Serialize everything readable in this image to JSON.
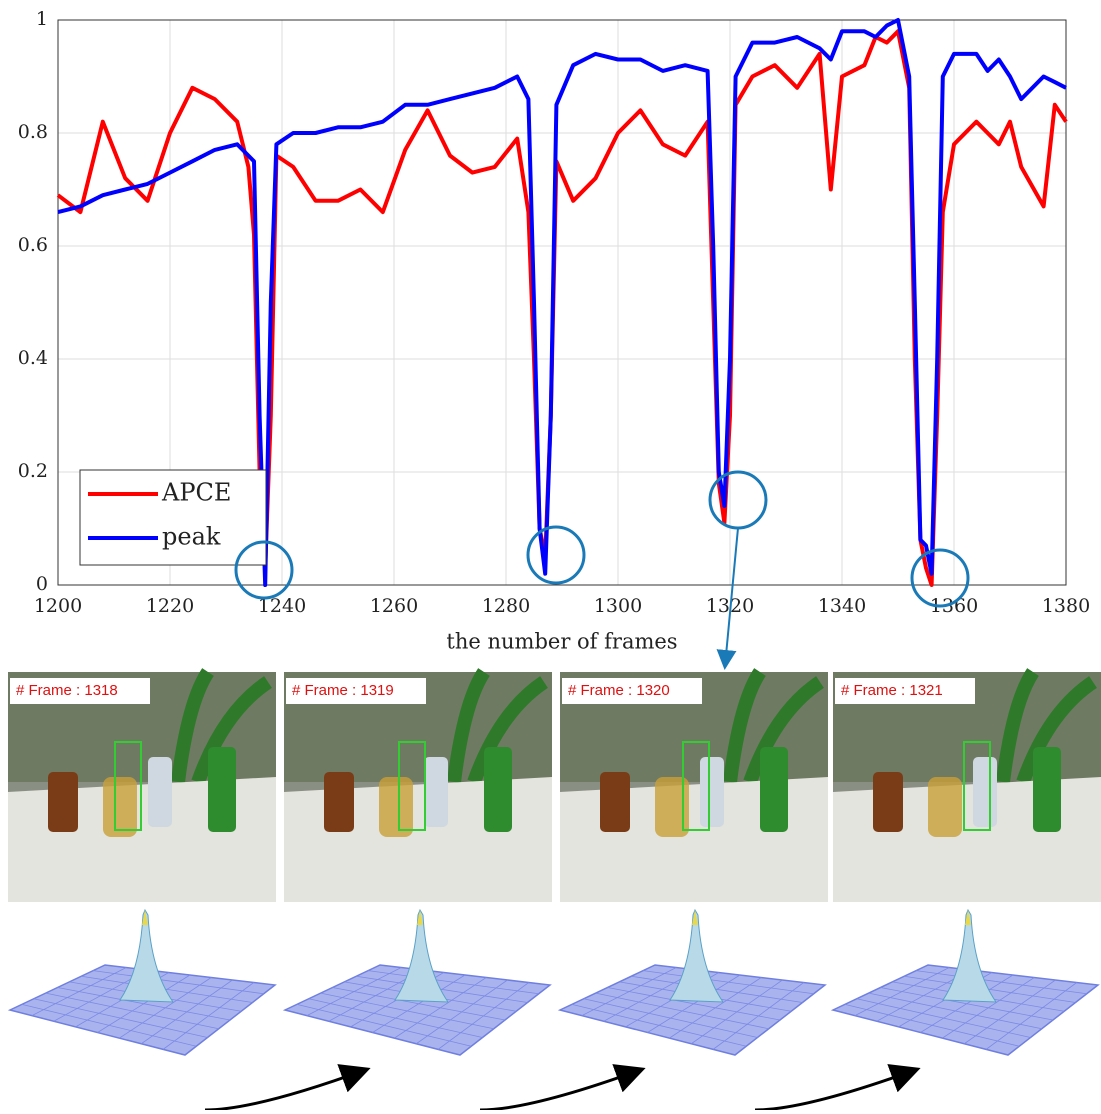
{
  "chart_data": {
    "type": "line",
    "x_label": "the number of frames",
    "x": [
      1200,
      1204,
      1208,
      1212,
      1216,
      1220,
      1224,
      1228,
      1232,
      1234,
      1235,
      1236,
      1237,
      1238,
      1239,
      1242,
      1246,
      1250,
      1254,
      1258,
      1262,
      1266,
      1270,
      1274,
      1278,
      1282,
      1284,
      1285,
      1286,
      1287,
      1288,
      1289,
      1292,
      1296,
      1300,
      1304,
      1308,
      1312,
      1316,
      1317,
      1318,
      1319,
      1320,
      1321,
      1324,
      1328,
      1332,
      1336,
      1338,
      1340,
      1344,
      1346,
      1348,
      1350,
      1352,
      1353,
      1354,
      1355,
      1356,
      1357,
      1358,
      1360,
      1364,
      1366,
      1368,
      1370,
      1372,
      1376,
      1378,
      1380
    ],
    "series": [
      {
        "name": "APCE",
        "color": "#ff0000",
        "values": [
          0.69,
          0.66,
          0.82,
          0.72,
          0.68,
          0.8,
          0.88,
          0.86,
          0.82,
          0.74,
          0.62,
          0.2,
          0.03,
          0.3,
          0.76,
          0.74,
          0.68,
          0.68,
          0.7,
          0.66,
          0.77,
          0.84,
          0.76,
          0.73,
          0.74,
          0.79,
          0.66,
          0.4,
          0.1,
          0.05,
          0.3,
          0.75,
          0.68,
          0.72,
          0.8,
          0.84,
          0.78,
          0.76,
          0.82,
          0.5,
          0.18,
          0.11,
          0.3,
          0.85,
          0.9,
          0.92,
          0.88,
          0.94,
          0.7,
          0.9,
          0.92,
          0.97,
          0.96,
          0.98,
          0.88,
          0.4,
          0.08,
          0.03,
          0.0,
          0.3,
          0.66,
          0.78,
          0.82,
          0.8,
          0.78,
          0.82,
          0.74,
          0.67,
          0.85,
          0.82
        ]
      },
      {
        "name": "peak",
        "color": "#0000ff",
        "values": [
          0.66,
          0.67,
          0.69,
          0.7,
          0.71,
          0.73,
          0.75,
          0.77,
          0.78,
          0.76,
          0.75,
          0.3,
          0.0,
          0.5,
          0.78,
          0.8,
          0.8,
          0.81,
          0.81,
          0.82,
          0.85,
          0.85,
          0.86,
          0.87,
          0.88,
          0.9,
          0.86,
          0.5,
          0.1,
          0.02,
          0.3,
          0.85,
          0.92,
          0.94,
          0.93,
          0.93,
          0.91,
          0.92,
          0.91,
          0.6,
          0.2,
          0.14,
          0.4,
          0.9,
          0.96,
          0.96,
          0.97,
          0.95,
          0.93,
          0.98,
          0.98,
          0.97,
          0.99,
          1.0,
          0.9,
          0.5,
          0.08,
          0.07,
          0.02,
          0.4,
          0.9,
          0.94,
          0.94,
          0.91,
          0.93,
          0.9,
          0.86,
          0.9,
          0.89,
          0.88
        ]
      }
    ],
    "xlim": [
      1200,
      1380
    ],
    "xticks": [
      1200,
      1220,
      1240,
      1260,
      1280,
      1300,
      1320,
      1340,
      1360,
      1380
    ],
    "ylim": [
      0,
      1
    ],
    "yticks": [
      0,
      0.2,
      0.4,
      0.6,
      0.8,
      1
    ],
    "grid": true,
    "legend": "lower-left"
  },
  "frames": [
    {
      "label": "# Frame : 1318"
    },
    {
      "label": "# Frame : 1319"
    },
    {
      "label": "# Frame : 1320"
    },
    {
      "label": "# Frame : 1321"
    }
  ]
}
